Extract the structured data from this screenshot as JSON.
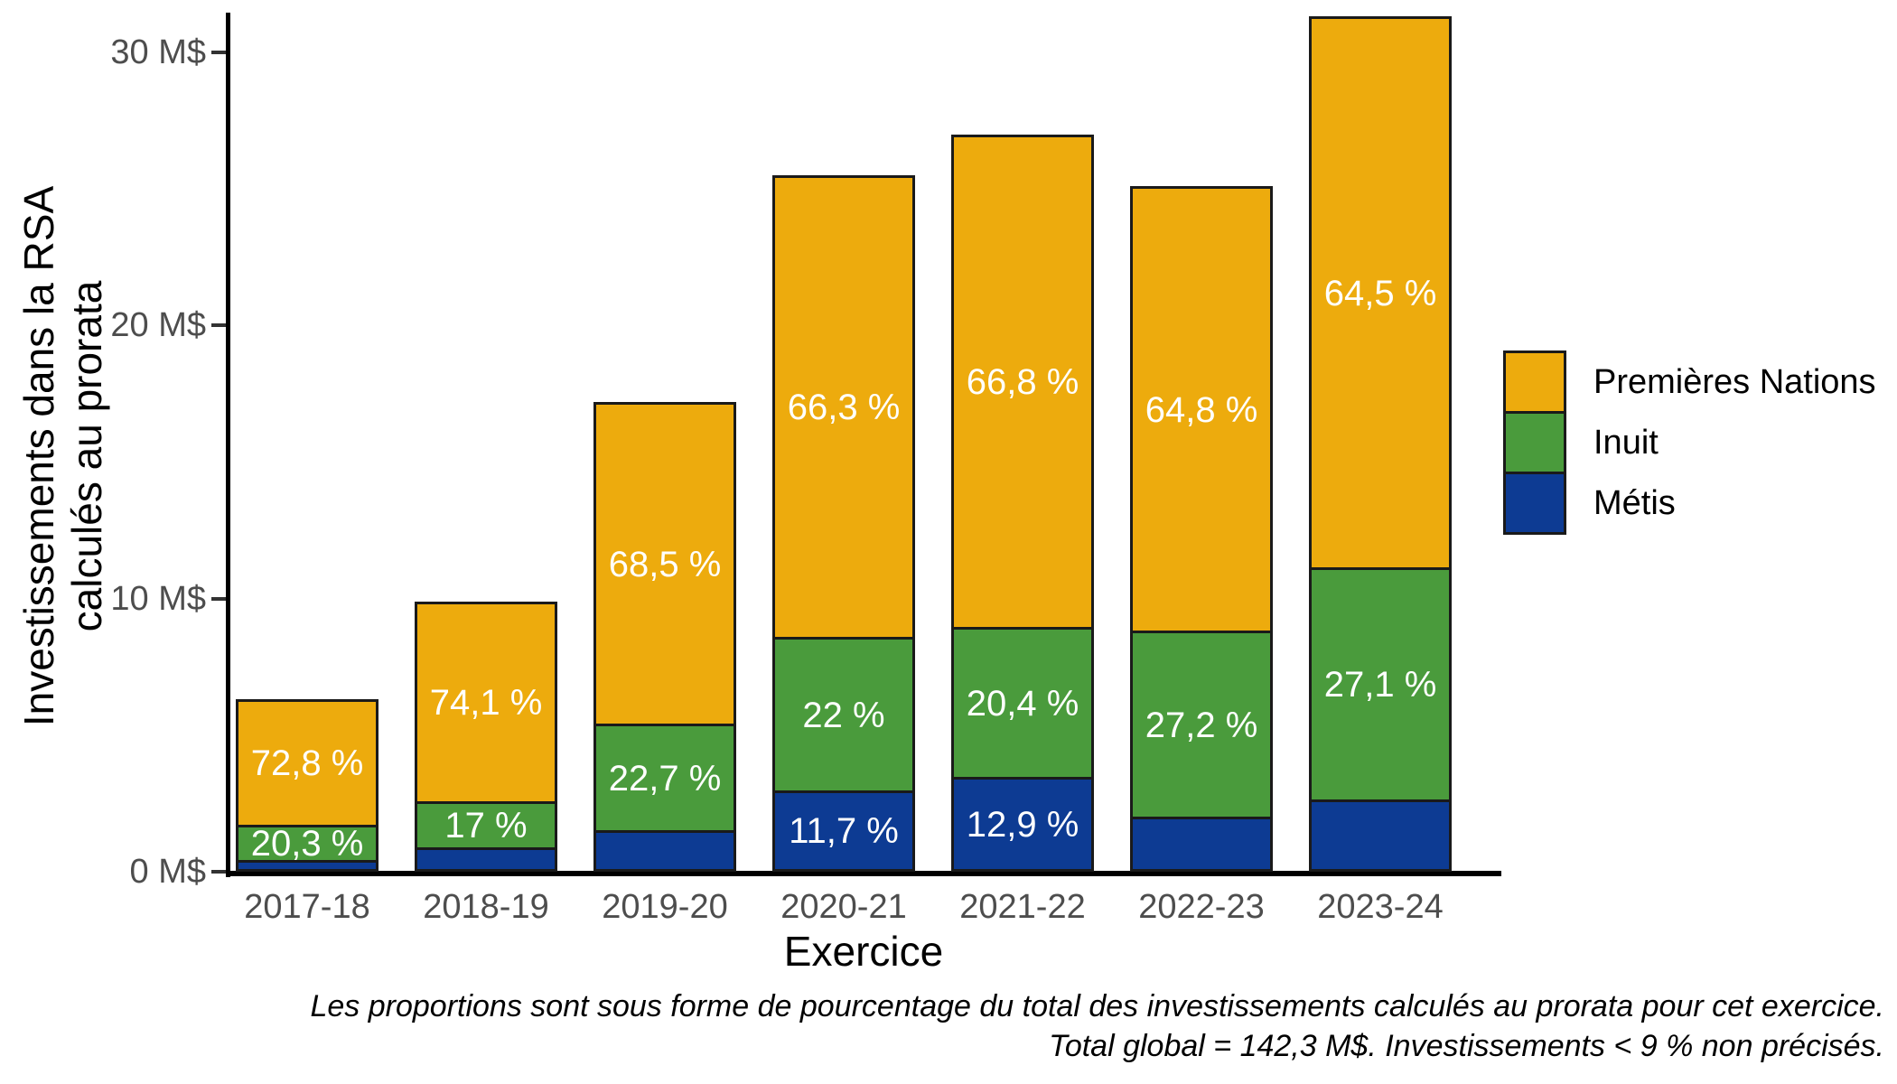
{
  "chart_data": {
    "type": "bar",
    "stacked": true,
    "title": "",
    "xlabel": "Exercice",
    "ylabel_lines": [
      "Investissements dans la RSA",
      "calculés au prorata"
    ],
    "categories": [
      "2017-18",
      "2018-19",
      "2019-20",
      "2020-21",
      "2021-22",
      "2022-23",
      "2023-24"
    ],
    "totals_M": [
      6.3,
      9.9,
      17.2,
      25.5,
      27.0,
      25.1,
      31.3
    ],
    "series": [
      {
        "name": "Métis",
        "color": "#0d3b93",
        "pct": [
          6.9,
          8.9,
          8.8,
          11.7,
          12.9,
          8.0,
          8.4
        ],
        "labels": [
          "",
          "",
          "",
          "11,7 %",
          "12,9 %",
          "",
          ""
        ]
      },
      {
        "name": "Inuit",
        "color": "#4a9b3c",
        "pct": [
          20.3,
          17.0,
          22.7,
          22.0,
          20.4,
          27.2,
          27.1
        ],
        "labels": [
          "20,3 %",
          "17 %",
          "22,7 %",
          "22 %",
          "20,4 %",
          "27,2 %",
          "27,1 %"
        ]
      },
      {
        "name": "Premières Nations",
        "color": "#edab0d",
        "pct": [
          72.8,
          74.1,
          68.5,
          66.3,
          66.8,
          64.8,
          64.5
        ],
        "labels": [
          "72,8 %",
          "74,1 %",
          "68,5 %",
          "66,3 %",
          "66,8 %",
          "64,8 %",
          "64,5 %"
        ]
      }
    ],
    "y_ticks": [
      {
        "value": 0,
        "label": "0 M$"
      },
      {
        "value": 10,
        "label": "10 M$"
      },
      {
        "value": 20,
        "label": "20 M$"
      },
      {
        "value": 30,
        "label": "30 M$"
      }
    ],
    "ylim": [
      0,
      31.5
    ],
    "grid": false,
    "legend_position": "right",
    "legend": [
      {
        "label": "Premières Nations",
        "color": "#edab0d"
      },
      {
        "label": "Inuit",
        "color": "#4a9b3c"
      },
      {
        "label": "Métis",
        "color": "#0d3b93"
      }
    ],
    "caption_lines": [
      "Les proportions sont sous forme de pourcentage du total des investissements calculés au prorata pour cet exercice.",
      "Total global = 142,3 M$. Investissements < 9 % non précisés."
    ],
    "bar_label_color": "#ffffff",
    "tick_label_color": "#4d4d4d",
    "axis_color": "#000000",
    "outline_color": "#1a1a1a"
  }
}
